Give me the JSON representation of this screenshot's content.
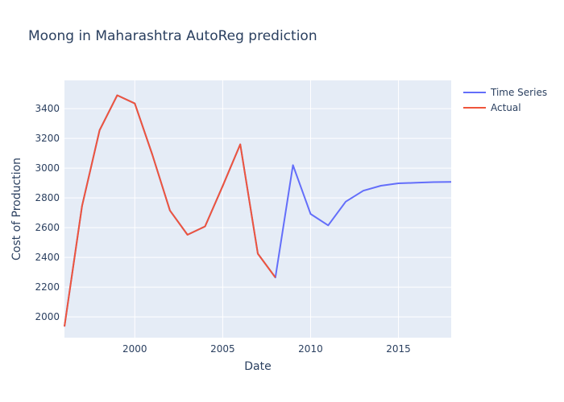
{
  "chart_data": {
    "type": "line",
    "title": "Moong in Maharashtra AutoReg prediction",
    "xlabel": "Date",
    "ylabel": "Cost of Production",
    "xlim": [
      1996,
      2018
    ],
    "ylim": [
      1860,
      3590
    ],
    "x_ticks": [
      2000,
      2005,
      2010,
      2015
    ],
    "y_ticks": [
      2000,
      2200,
      2400,
      2600,
      2800,
      3000,
      3200,
      3400
    ],
    "grid": true,
    "legend_position": "top-right",
    "series": [
      {
        "name": "Time Series",
        "color": "#636efa",
        "x": [
          1996,
          1997,
          1998,
          1999,
          2000,
          2001,
          2002,
          2003,
          2004,
          2005,
          2006,
          2007,
          2008,
          2009,
          2010,
          2011,
          2012,
          2013,
          2014,
          2015,
          2016,
          2017,
          2018
        ],
        "y": [
          1935,
          2745,
          3255,
          3490,
          3435,
          3090,
          2715,
          2552,
          2608,
          2880,
          3160,
          2425,
          2265,
          3020,
          2692,
          2615,
          2775,
          2848,
          2882,
          2898,
          2902,
          2906,
          2907
        ]
      },
      {
        "name": "Actual",
        "color": "#ef553b",
        "x": [
          1996,
          1997,
          1998,
          1999,
          2000,
          2001,
          2002,
          2003,
          2004,
          2005,
          2006,
          2007,
          2008
        ],
        "y": [
          1935,
          2745,
          3255,
          3490,
          3435,
          3090,
          2715,
          2552,
          2608,
          2880,
          3160,
          2425,
          2265
        ]
      }
    ]
  }
}
